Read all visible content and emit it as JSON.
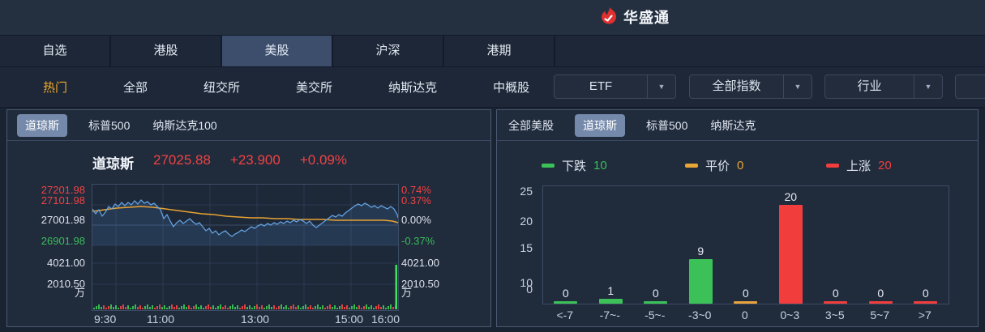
{
  "header": {
    "logo_text": "华盛通"
  },
  "market_tabs": [
    {
      "label": "自选",
      "active": false
    },
    {
      "label": "港股",
      "active": false
    },
    {
      "label": "美股",
      "active": true
    },
    {
      "label": "沪深",
      "active": false
    },
    {
      "label": "港期",
      "active": false
    }
  ],
  "nav": {
    "items": [
      {
        "label": "热门",
        "active": true
      },
      {
        "label": "全部",
        "active": false
      },
      {
        "label": "纽交所",
        "active": false
      },
      {
        "label": "美交所",
        "active": false
      },
      {
        "label": "纳斯达克",
        "active": false
      },
      {
        "label": "中概股",
        "active": false
      }
    ],
    "dropdowns": [
      {
        "label": "ETF"
      },
      {
        "label": "全部指数"
      },
      {
        "label": "行业"
      }
    ]
  },
  "left_panel": {
    "tabs": [
      {
        "label": "道琼斯",
        "active": true
      },
      {
        "label": "标普500",
        "active": false
      },
      {
        "label": "纳斯达克100",
        "active": false
      }
    ]
  },
  "right_panel": {
    "tabs": [
      {
        "label": "全部美股",
        "active": false
      },
      {
        "label": "道琼斯",
        "active": true
      },
      {
        "label": "标普500",
        "active": false
      },
      {
        "label": "纳斯达克",
        "active": false
      }
    ]
  },
  "colors": {
    "up_red": "#ef4343",
    "down_green": "#3bbd5b",
    "flat_yellow": "#e9a636",
    "price_line_blue": "#62a0e0",
    "avg_line_orange": "#e8a332",
    "accent_orange": "#f0a929",
    "active_pill": "#7589ab"
  },
  "chart_data": [
    {
      "type": "line",
      "title": "道琼斯分时图",
      "quote": {
        "name": "道琼斯",
        "price": "27025.88",
        "change": "+23.900",
        "change_pct": "+0.09%"
      },
      "x_ticks": [
        "9:30",
        "11:00",
        "13:00",
        "15:00",
        "16:00"
      ],
      "x_range": [
        "9:30",
        "16:00"
      ],
      "y_axis_left": [
        {
          "text": "27201.98",
          "color": "#ef4343"
        },
        {
          "text": "27101.98",
          "color": "#ef4343"
        },
        {
          "text": "27001.98",
          "color": "#dde4ee"
        },
        {
          "text": "26901.98",
          "color": "#3bbd5b"
        },
        {
          "text": "4021.00",
          "color": "#dde4ee"
        },
        {
          "text": "2010.50",
          "color": "#dde4ee"
        },
        {
          "text": "万",
          "color": "#dde4ee"
        }
      ],
      "y_axis_right": [
        {
          "text": "0.74%",
          "color": "#ef4343"
        },
        {
          "text": "0.37%",
          "color": "#ef4343"
        },
        {
          "text": "0.00%",
          "color": "#dde4ee"
        },
        {
          "text": "-0.37%",
          "color": "#3bbd5b"
        },
        {
          "text": "4021.00",
          "color": "#dde4ee"
        },
        {
          "text": "2010.50",
          "color": "#dde4ee"
        },
        {
          "text": "万",
          "color": "#dde4ee"
        }
      ],
      "prev_close": "27001.98",
      "series": [
        {
          "name": "price",
          "color": "#62a0e0",
          "points": [
            [
              0,
              30
            ],
            [
              4,
              36
            ],
            [
              8,
              31
            ],
            [
              12,
              39
            ],
            [
              16,
              34
            ],
            [
              20,
              27
            ],
            [
              24,
              30
            ],
            [
              28,
              24
            ],
            [
              32,
              27
            ],
            [
              36,
              22
            ],
            [
              40,
              26
            ],
            [
              44,
              22
            ],
            [
              48,
              25
            ],
            [
              52,
              20
            ],
            [
              56,
              24
            ],
            [
              60,
              19
            ],
            [
              64,
              23
            ],
            [
              68,
              21
            ],
            [
              72,
              25
            ],
            [
              76,
              23
            ],
            [
              80,
              27
            ],
            [
              84,
              31
            ],
            [
              88,
              42
            ],
            [
              92,
              37
            ],
            [
              96,
              45
            ],
            [
              100,
              52
            ],
            [
              104,
              47
            ],
            [
              108,
              44
            ],
            [
              112,
              48
            ],
            [
              116,
              45
            ],
            [
              120,
              42
            ],
            [
              124,
              46
            ],
            [
              128,
              49
            ],
            [
              132,
              47
            ],
            [
              136,
              52
            ],
            [
              140,
              57
            ],
            [
              144,
              54
            ],
            [
              148,
              60
            ],
            [
              152,
              57
            ],
            [
              156,
              62
            ],
            [
              160,
              59
            ],
            [
              164,
              57
            ],
            [
              168,
              61
            ],
            [
              172,
              64
            ],
            [
              176,
              61
            ],
            [
              180,
              59
            ],
            [
              184,
              56
            ],
            [
              188,
              58
            ],
            [
              192,
              55
            ],
            [
              196,
              52
            ],
            [
              200,
              54
            ],
            [
              204,
              51
            ],
            [
              208,
              49
            ],
            [
              212,
              51
            ],
            [
              216,
              48
            ],
            [
              220,
              50
            ],
            [
              224,
              47
            ],
            [
              228,
              49
            ],
            [
              232,
              46
            ],
            [
              236,
              48
            ],
            [
              240,
              45
            ],
            [
              244,
              47
            ],
            [
              248,
              44
            ],
            [
              252,
              46
            ],
            [
              256,
              43
            ],
            [
              260,
              45
            ],
            [
              264,
              48
            ],
            [
              268,
              45
            ],
            [
              272,
              50
            ],
            [
              276,
              53
            ],
            [
              280,
              50
            ],
            [
              284,
              47
            ],
            [
              288,
              44
            ],
            [
              292,
              41
            ],
            [
              296,
              38
            ],
            [
              300,
              40
            ],
            [
              304,
              37
            ],
            [
              308,
              39
            ],
            [
              312,
              35
            ],
            [
              316,
              32
            ],
            [
              320,
              29
            ],
            [
              324,
              26
            ],
            [
              328,
              24
            ],
            [
              332,
              26
            ],
            [
              336,
              23
            ],
            [
              340,
              25
            ],
            [
              344,
              28
            ],
            [
              348,
              26
            ],
            [
              352,
              29
            ],
            [
              356,
              26
            ],
            [
              360,
              28
            ],
            [
              364,
              30
            ],
            [
              368,
              27
            ],
            [
              372,
              30
            ],
            [
              376,
              37
            ],
            [
              377,
              41
            ]
          ]
        },
        {
          "name": "avg",
          "color": "#e8a332",
          "points": [
            [
              0,
              33
            ],
            [
              15,
              31
            ],
            [
              30,
              29
            ],
            [
              45,
              28
            ],
            [
              60,
              27
            ],
            [
              75,
              28
            ],
            [
              90,
              30
            ],
            [
              105,
              32
            ],
            [
              120,
              34
            ],
            [
              135,
              36
            ],
            [
              150,
              37
            ],
            [
              165,
              39
            ],
            [
              180,
              40
            ],
            [
              195,
              41
            ],
            [
              210,
              41
            ],
            [
              225,
              42
            ],
            [
              240,
              42
            ],
            [
              255,
              43
            ],
            [
              270,
              43
            ],
            [
              285,
              43
            ],
            [
              300,
              44
            ],
            [
              315,
              44
            ],
            [
              330,
              44
            ],
            [
              345,
              44
            ],
            [
              360,
              44
            ],
            [
              370,
              45
            ],
            [
              377,
              47
            ]
          ]
        }
      ]
    },
    {
      "type": "bar",
      "title": "道琼斯涨跌分布",
      "categories": [
        "<-7",
        "-7~-",
        "-5~-",
        "-3~0",
        "0",
        "0~3",
        "3~5",
        "5~7",
        ">7"
      ],
      "values": [
        0,
        1,
        0,
        9,
        0,
        20,
        0,
        0,
        0
      ],
      "bar_colors": [
        "#3bc157",
        "#3bc157",
        "#3bc157",
        "#3bc157",
        "#e8a33c",
        "#f23d3d",
        "#f23d3d",
        "#f23d3d",
        "#f23d3d"
      ],
      "ylabels": [
        "25",
        "20",
        "15",
        "10",
        "0"
      ],
      "ylim": [
        0,
        25
      ],
      "legend": [
        {
          "label": "下跌",
          "value": "10",
          "color": "#3bc157"
        },
        {
          "label": "平价",
          "value": "0",
          "color": "#e9a636"
        },
        {
          "label": "上涨",
          "value": "20",
          "color": "#f23d3d"
        }
      ],
      "legend_position": "top"
    }
  ]
}
